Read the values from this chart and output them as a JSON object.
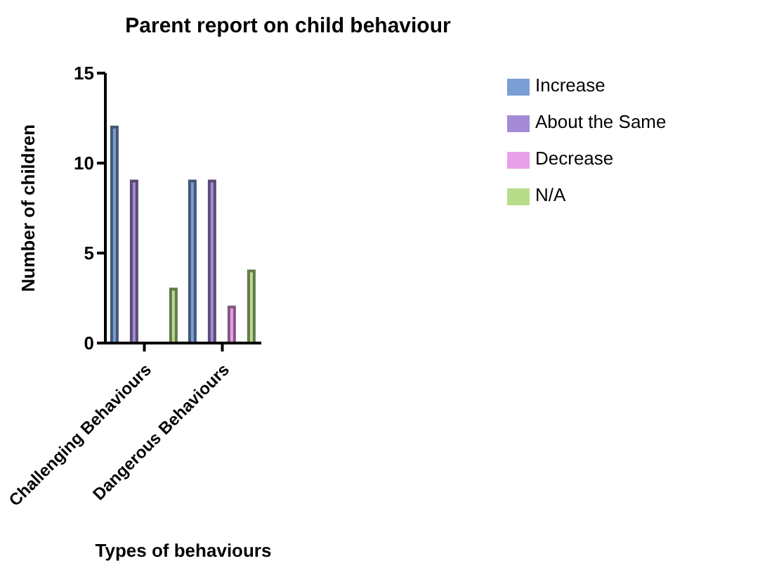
{
  "chart_data": {
    "type": "bar",
    "title": "Parent report on child behaviour",
    "xlabel": "Types of behaviours",
    "ylabel": "Number of children",
    "categories": [
      "Challenging Behaviours",
      "Dangerous Behaviours"
    ],
    "series": [
      {
        "name": "Increase",
        "color": "#7b9fd4",
        "values": [
          12,
          9
        ]
      },
      {
        "name": "About the Same",
        "color": "#a58bd6",
        "values": [
          9,
          9
        ]
      },
      {
        "name": "Decrease",
        "color": "#e8a0e8",
        "values": [
          0,
          2
        ]
      },
      {
        "name": "N/A",
        "color": "#b8dc8a",
        "values": [
          3,
          4
        ]
      }
    ],
    "ylim": [
      0,
      15
    ],
    "yticks": [
      0,
      5,
      10,
      15
    ],
    "grid": false,
    "legend": "top right"
  }
}
